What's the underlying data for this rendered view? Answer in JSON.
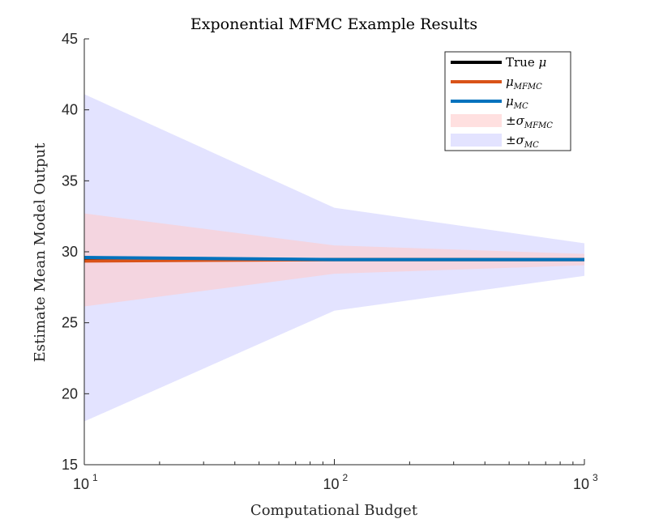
{
  "chart_data": {
    "type": "line",
    "title": "Exponential MFMC Example Results",
    "xlabel": "Computational Budget",
    "ylabel": "Estimate Mean Model Output",
    "xscale": "log",
    "xlim": [
      10,
      1000
    ],
    "ylim": [
      15,
      45
    ],
    "x_ticks": [
      {
        "base": "10",
        "exp": "1",
        "value": 10
      },
      {
        "base": "10",
        "exp": "2",
        "value": 100
      },
      {
        "base": "10",
        "exp": "3",
        "value": 1000
      }
    ],
    "y_ticks": [
      "15",
      "20",
      "25",
      "30",
      "35",
      "40",
      "45"
    ],
    "x": [
      10,
      100,
      1000
    ],
    "series": [
      {
        "name": "True μ",
        "legend_base": "True ",
        "legend_var": "μ",
        "legend_sub": "",
        "kind": "line",
        "color": "#000000",
        "values": [
          29.45,
          29.45,
          29.45
        ]
      },
      {
        "name": "μMFMC",
        "legend_base": "",
        "legend_var": "μ",
        "legend_sub": "MFMC",
        "kind": "line",
        "color": "#D95319",
        "values": [
          29.35,
          29.45,
          29.45
        ]
      },
      {
        "name": "μMC",
        "legend_base": "",
        "legend_var": "μ",
        "legend_sub": "MC",
        "kind": "line",
        "color": "#0072BD",
        "values": [
          29.6,
          29.45,
          29.45
        ]
      },
      {
        "name": "±σMFMC",
        "legend_base": "±",
        "legend_var": "σ",
        "legend_sub": "MFMC",
        "kind": "band",
        "color": "#FFCCCC",
        "opacity": 0.6,
        "lower": [
          26.15,
          28.45,
          29.05
        ],
        "upper": [
          32.7,
          30.45,
          29.85
        ]
      },
      {
        "name": "±σMC",
        "legend_base": "±",
        "legend_var": "σ",
        "legend_sub": "MC",
        "kind": "band",
        "color": "#CCCCFF",
        "opacity": 0.55,
        "lower": [
          18.05,
          25.85,
          28.3
        ],
        "upper": [
          41.1,
          33.1,
          30.6
        ]
      }
    ],
    "legend_position": "top-right",
    "grid": false
  }
}
